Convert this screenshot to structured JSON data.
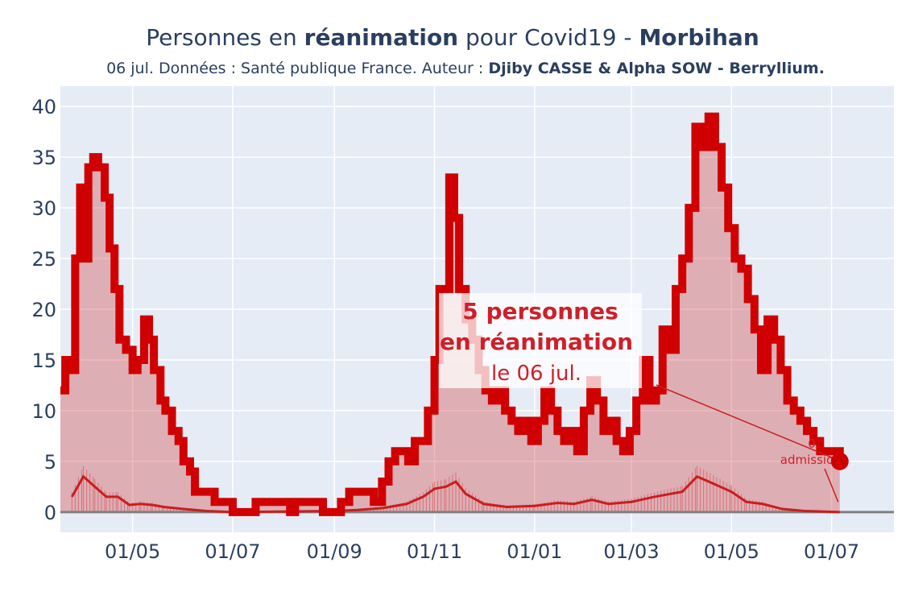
{
  "chart_data": {
    "type": "area",
    "title": {
      "part1": "Personnes en ",
      "part2_bold": "réanimation",
      "part3": " pour Covid19 - ",
      "part4_bold": "Morbihan"
    },
    "subtitle": {
      "part1": "06 jul. Données : Santé publique France. Auteur : ",
      "part2_bold": "Djiby CASSE & Alpha SOW - Berryllium."
    },
    "xlabel": "",
    "ylabel": "",
    "x_tick_labels": [
      "01/05",
      "01/07",
      "01/09",
      "01/11",
      "01/01",
      "01/03",
      "01/05",
      "01/07"
    ],
    "x_tick_dates": [
      "2020-05-01",
      "2020-07-01",
      "2020-09-01",
      "2020-11-01",
      "2021-01-01",
      "2021-03-01",
      "2021-05-01",
      "2021-07-01"
    ],
    "y_tick_labels": [
      "0",
      "5",
      "10",
      "15",
      "20",
      "25",
      "30",
      "35",
      "40"
    ],
    "xlim": [
      "2020-03-18",
      "2021-08-08"
    ],
    "ylim": [
      -2,
      42
    ],
    "grid": true,
    "colors": {
      "background": "#e5ecf6",
      "main_line": "#d00000",
      "area_fill": "#d23c3c",
      "admissions": "#c81e1e",
      "annotation_text": "#cf1f2a",
      "zero_line": "#808080",
      "text": "#2a3f5f"
    },
    "series": [
      {
        "name": "",
        "role": "réanimation",
        "points": [
          [
            "2020-03-18",
            12
          ],
          [
            "2020-03-21",
            15
          ],
          [
            "2020-03-24",
            14
          ],
          [
            "2020-03-27",
            25
          ],
          [
            "2020-03-30",
            32
          ],
          [
            "2020-04-01",
            25
          ],
          [
            "2020-04-04",
            34
          ],
          [
            "2020-04-07",
            35
          ],
          [
            "2020-04-10",
            34
          ],
          [
            "2020-04-14",
            31
          ],
          [
            "2020-04-17",
            26
          ],
          [
            "2020-04-20",
            22
          ],
          [
            "2020-04-23",
            17
          ],
          [
            "2020-04-27",
            16
          ],
          [
            "2020-05-01",
            14
          ],
          [
            "2020-05-04",
            15
          ],
          [
            "2020-05-08",
            19
          ],
          [
            "2020-05-11",
            17
          ],
          [
            "2020-05-14",
            14
          ],
          [
            "2020-05-18",
            11
          ],
          [
            "2020-05-21",
            10
          ],
          [
            "2020-05-25",
            8
          ],
          [
            "2020-05-29",
            7
          ],
          [
            "2020-06-01",
            5
          ],
          [
            "2020-06-05",
            4
          ],
          [
            "2020-06-08",
            2
          ],
          [
            "2020-06-15",
            2
          ],
          [
            "2020-06-20",
            1
          ],
          [
            "2020-06-28",
            1
          ],
          [
            "2020-07-01",
            0
          ],
          [
            "2020-07-10",
            0
          ],
          [
            "2020-07-15",
            1
          ],
          [
            "2020-08-01",
            1
          ],
          [
            "2020-08-05",
            0
          ],
          [
            "2020-08-08",
            1
          ],
          [
            "2020-08-20",
            1
          ],
          [
            "2020-08-25",
            0
          ],
          [
            "2020-09-01",
            0
          ],
          [
            "2020-09-05",
            1
          ],
          [
            "2020-09-10",
            2
          ],
          [
            "2020-09-18",
            2
          ],
          [
            "2020-09-25",
            1
          ],
          [
            "2020-09-30",
            3
          ],
          [
            "2020-10-04",
            5
          ],
          [
            "2020-10-08",
            6
          ],
          [
            "2020-10-12",
            6
          ],
          [
            "2020-10-16",
            5
          ],
          [
            "2020-10-20",
            7
          ],
          [
            "2020-10-24",
            7
          ],
          [
            "2020-10-28",
            10
          ],
          [
            "2020-11-01",
            15
          ],
          [
            "2020-11-04",
            22
          ],
          [
            "2020-11-07",
            22
          ],
          [
            "2020-11-10",
            33
          ],
          [
            "2020-11-13",
            29
          ],
          [
            "2020-11-16",
            22
          ],
          [
            "2020-11-20",
            19
          ],
          [
            "2020-11-24",
            17
          ],
          [
            "2020-11-28",
            14
          ],
          [
            "2020-12-02",
            12
          ],
          [
            "2020-12-06",
            11
          ],
          [
            "2020-12-10",
            12
          ],
          [
            "2020-12-14",
            10
          ],
          [
            "2020-12-18",
            9
          ],
          [
            "2020-12-22",
            8
          ],
          [
            "2020-12-26",
            9
          ],
          [
            "2020-12-30",
            7
          ],
          [
            "2021-01-03",
            9
          ],
          [
            "2021-01-07",
            12
          ],
          [
            "2021-01-11",
            10
          ],
          [
            "2021-01-15",
            8
          ],
          [
            "2021-01-19",
            7
          ],
          [
            "2021-01-23",
            8
          ],
          [
            "2021-01-27",
            6
          ],
          [
            "2021-01-31",
            10
          ],
          [
            "2021-02-04",
            13
          ],
          [
            "2021-02-08",
            11
          ],
          [
            "2021-02-12",
            8
          ],
          [
            "2021-02-16",
            9
          ],
          [
            "2021-02-20",
            7
          ],
          [
            "2021-02-24",
            6
          ],
          [
            "2021-02-28",
            8
          ],
          [
            "2021-03-04",
            11
          ],
          [
            "2021-03-08",
            15
          ],
          [
            "2021-03-12",
            11
          ],
          [
            "2021-03-16",
            12
          ],
          [
            "2021-03-20",
            18
          ],
          [
            "2021-03-24",
            16
          ],
          [
            "2021-03-28",
            22
          ],
          [
            "2021-04-01",
            25
          ],
          [
            "2021-04-05",
            30
          ],
          [
            "2021-04-09",
            38
          ],
          [
            "2021-04-13",
            36
          ],
          [
            "2021-04-17",
            39
          ],
          [
            "2021-04-21",
            36
          ],
          [
            "2021-04-25",
            32
          ],
          [
            "2021-04-29",
            28
          ],
          [
            "2021-05-03",
            25
          ],
          [
            "2021-05-07",
            24
          ],
          [
            "2021-05-11",
            21
          ],
          [
            "2021-05-15",
            18
          ],
          [
            "2021-05-19",
            14
          ],
          [
            "2021-05-23",
            19
          ],
          [
            "2021-05-27",
            17
          ],
          [
            "2021-05-31",
            14
          ],
          [
            "2021-06-04",
            11
          ],
          [
            "2021-06-08",
            10
          ],
          [
            "2021-06-12",
            9
          ],
          [
            "2021-06-16",
            8
          ],
          [
            "2021-06-20",
            7
          ],
          [
            "2021-06-24",
            6
          ],
          [
            "2021-06-28",
            6
          ],
          [
            "2021-07-02",
            6
          ],
          [
            "2021-07-06",
            5
          ]
        ]
      },
      {
        "name": "",
        "role": "admissions",
        "points": [
          [
            "2020-03-25",
            1.5
          ],
          [
            "2020-04-01",
            3.5
          ],
          [
            "2020-04-08",
            2.5
          ],
          [
            "2020-04-15",
            1.5
          ],
          [
            "2020-04-22",
            1.5
          ],
          [
            "2020-04-29",
            0.7
          ],
          [
            "2020-05-06",
            0.8
          ],
          [
            "2020-05-13",
            0.7
          ],
          [
            "2020-05-20",
            0.5
          ],
          [
            "2020-06-01",
            0.3
          ],
          [
            "2020-06-15",
            0.1
          ],
          [
            "2020-07-01",
            0
          ],
          [
            "2020-09-01",
            0.1
          ],
          [
            "2020-09-15",
            0.2
          ],
          [
            "2020-10-01",
            0.4
          ],
          [
            "2020-10-15",
            0.8
          ],
          [
            "2020-10-25",
            1.5
          ],
          [
            "2020-11-01",
            2.3
          ],
          [
            "2020-11-08",
            2.5
          ],
          [
            "2020-11-14",
            3.0
          ],
          [
            "2020-11-20",
            1.8
          ],
          [
            "2020-12-01",
            0.8
          ],
          [
            "2020-12-15",
            0.5
          ],
          [
            "2021-01-01",
            0.6
          ],
          [
            "2021-01-15",
            0.9
          ],
          [
            "2021-01-25",
            0.8
          ],
          [
            "2021-02-05",
            1.2
          ],
          [
            "2021-02-15",
            0.8
          ],
          [
            "2021-03-01",
            1.0
          ],
          [
            "2021-03-15",
            1.5
          ],
          [
            "2021-04-01",
            2.0
          ],
          [
            "2021-04-10",
            3.5
          ],
          [
            "2021-04-20",
            2.8
          ],
          [
            "2021-05-01",
            2.0
          ],
          [
            "2021-05-10",
            1.0
          ],
          [
            "2021-05-20",
            0.8
          ],
          [
            "2021-06-01",
            0.3
          ],
          [
            "2021-06-15",
            0.1
          ],
          [
            "2021-07-06",
            0
          ]
        ]
      }
    ],
    "highlight_point": [
      "2021-07-06",
      5
    ],
    "annotations": {
      "main_value": "5 personnes",
      "main_label": "en réanimation",
      "main_date": "le 06 jul.",
      "second_value": "0",
      "second_label": "admissio"
    }
  }
}
